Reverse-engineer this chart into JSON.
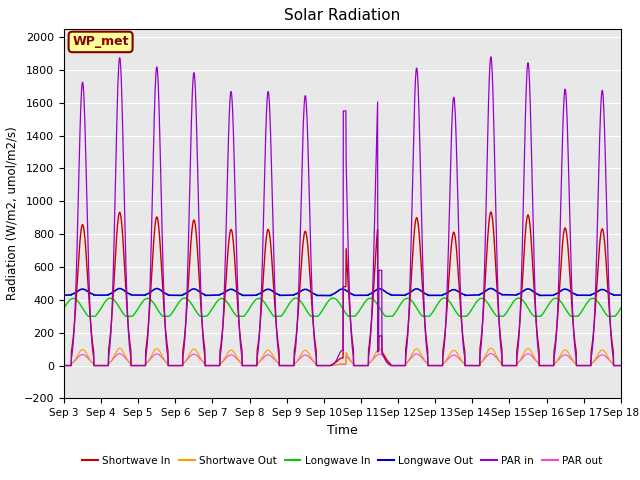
{
  "title": "Solar Radiation",
  "xlabel": "Time",
  "ylabel": "Radiation (W/m2, umol/m2/s)",
  "ylim": [
    -200,
    2050
  ],
  "yticks": [
    -200,
    0,
    200,
    400,
    600,
    800,
    1000,
    1200,
    1400,
    1600,
    1800,
    2000
  ],
  "legend_labels": [
    "Shortwave In",
    "Shortwave Out",
    "Longwave In",
    "Longwave Out",
    "PAR in",
    "PAR out"
  ],
  "legend_colors": [
    "#cc0000",
    "#ff9900",
    "#00cc00",
    "#0000cc",
    "#9900cc",
    "#ff44cc"
  ],
  "annotation_text": "WP_met",
  "annotation_color": "#880000",
  "annotation_bg": "#ffff99",
  "days": 15,
  "start_day": 3,
  "background_color": "#e8e8e8",
  "grid_color": "#ffffff",
  "shortwave_in_peak": 920,
  "shortwave_out_peak": 110,
  "longwave_in_base": 350,
  "longwave_in_amplitude": 60,
  "longwave_out_base": 420,
  "longwave_out_amplitude": 80,
  "par_in_peak": 1850,
  "par_out_peak": 80,
  "par_out_wide_peak": 55
}
